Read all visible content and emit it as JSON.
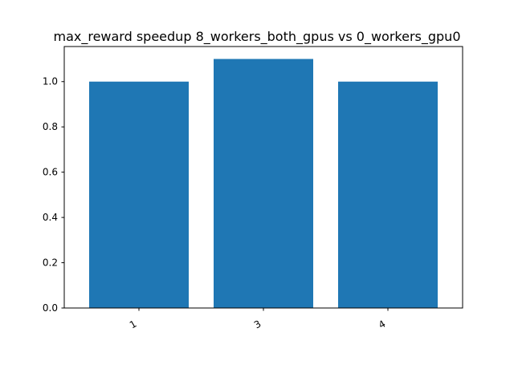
{
  "chart_data": {
    "type": "bar",
    "title": "max_reward speedup 8_workers_both_gpus vs 0_workers_gpu0",
    "xlabel": "",
    "ylabel": "",
    "categories": [
      "1",
      "3",
      "4"
    ],
    "values": [
      1.0,
      1.1,
      1.0
    ],
    "ylim": [
      0,
      1.155
    ],
    "yticks": [
      "0.0",
      "0.2",
      "0.4",
      "0.6",
      "0.8",
      "1.0"
    ],
    "bar_color": "#1f77b4",
    "grid": false,
    "legend": "none"
  }
}
